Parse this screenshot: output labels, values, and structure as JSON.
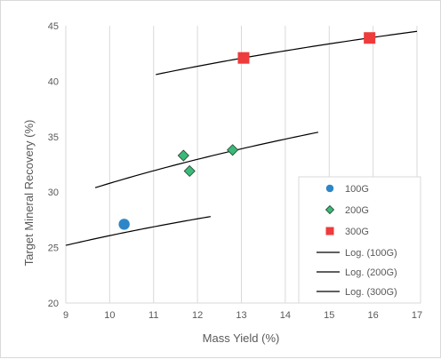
{
  "chart_data": {
    "type": "scatter",
    "title": "",
    "xlabel": "Mass Yield (%)",
    "ylabel": "Target Mineral Recovery (%)",
    "xlim": [
      9,
      17
    ],
    "ylim": [
      20,
      45
    ],
    "xticks": [
      9,
      10,
      11,
      12,
      13,
      14,
      15,
      16,
      17
    ],
    "yticks": [
      20,
      25,
      30,
      35,
      40,
      45
    ],
    "grid": "vertical",
    "legend_position": "bottom-right",
    "series": [
      {
        "name": "100G",
        "marker": "circle",
        "color": "#2e86c8",
        "points": [
          [
            10.33,
            27.1
          ]
        ]
      },
      {
        "name": "200G",
        "marker": "diamond",
        "color": "#3cb878",
        "points": [
          [
            11.68,
            33.3
          ],
          [
            11.82,
            31.9
          ],
          [
            12.8,
            33.8
          ]
        ]
      },
      {
        "name": "300G",
        "marker": "square",
        "color": "#ee3b3b",
        "points": [
          [
            13.05,
            42.1
          ],
          [
            15.92,
            43.9
          ]
        ]
      }
    ],
    "trendlines": [
      {
        "name": "Log. (100G)",
        "type": "log",
        "color": "#000000",
        "x_range": [
          9.0,
          12.3
        ],
        "y_range": [
          25.2,
          27.8
        ]
      },
      {
        "name": "Log. (200G)",
        "type": "log",
        "color": "#000000",
        "x_range": [
          9.67,
          14.75
        ],
        "y_range": [
          30.4,
          35.4
        ]
      },
      {
        "name": "Log. (300G)",
        "type": "log",
        "color": "#000000",
        "x_range": [
          11.05,
          17.0
        ],
        "y_range": [
          40.6,
          44.5
        ]
      }
    ]
  }
}
